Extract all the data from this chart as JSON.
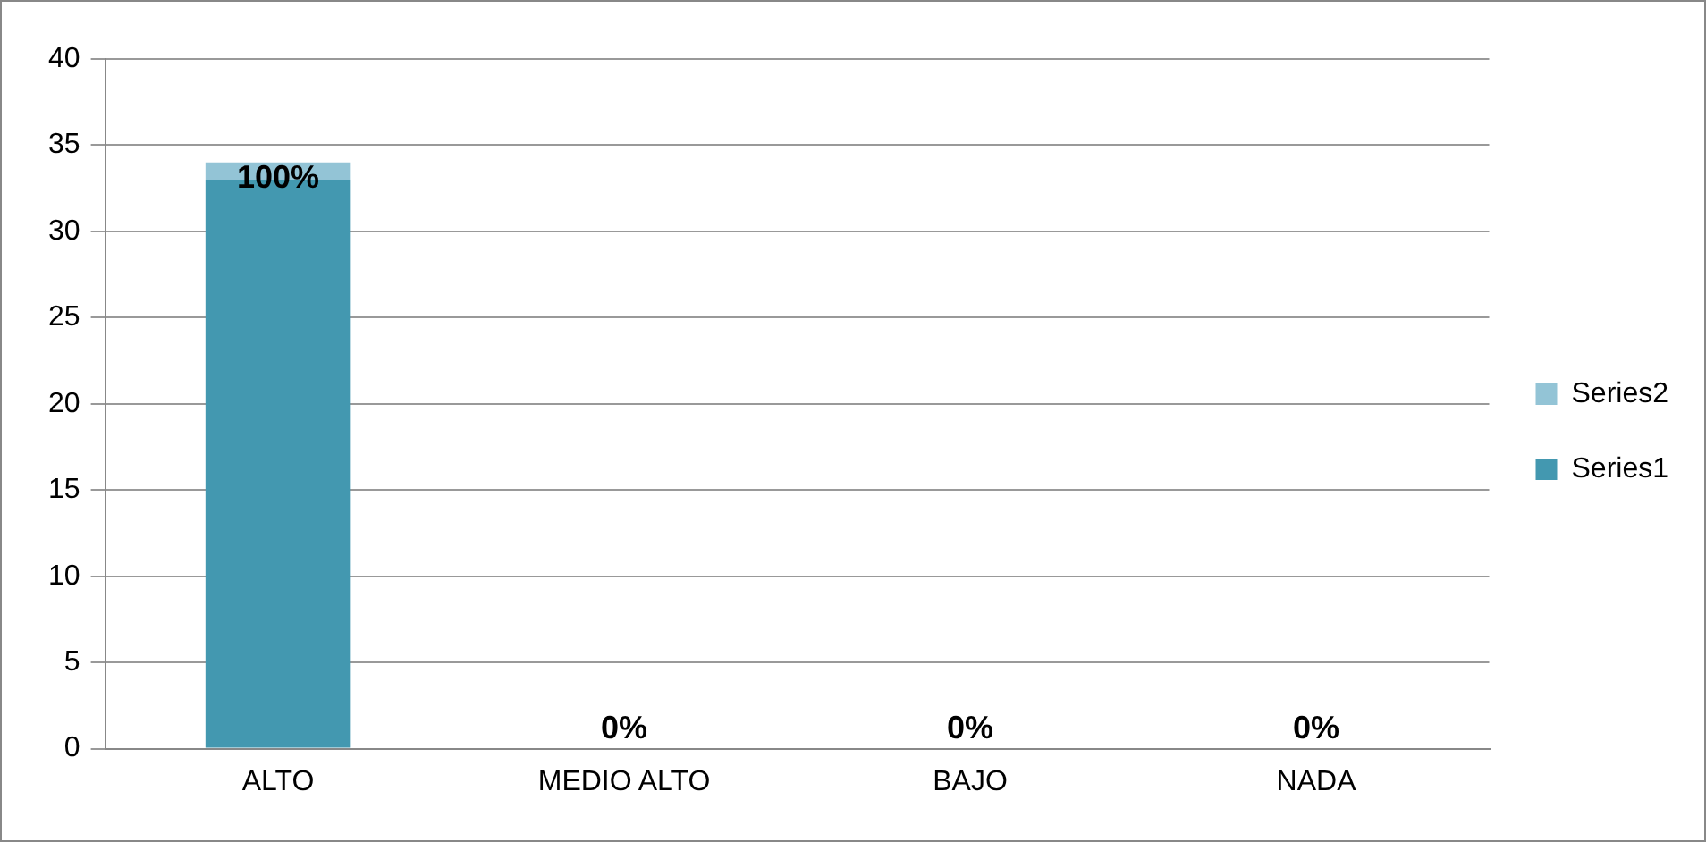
{
  "chart_data": {
    "type": "bar",
    "stacked": true,
    "categories": [
      "ALTO",
      "MEDIO ALTO",
      "BAJO",
      "NADA"
    ],
    "series": [
      {
        "name": "Series1",
        "color": "#4398b0",
        "values": [
          33,
          0,
          0,
          0
        ]
      },
      {
        "name": "Series2",
        "color": "#93c4d6",
        "values": [
          1,
          0,
          0,
          0
        ],
        "value_labels": [
          "100%",
          "0%",
          "0%",
          "0%"
        ]
      }
    ],
    "ylim": [
      0,
      40
    ],
    "yticks": [
      0,
      5,
      10,
      15,
      20,
      25,
      30,
      35,
      40
    ],
    "grid": "y",
    "legend": "right"
  }
}
